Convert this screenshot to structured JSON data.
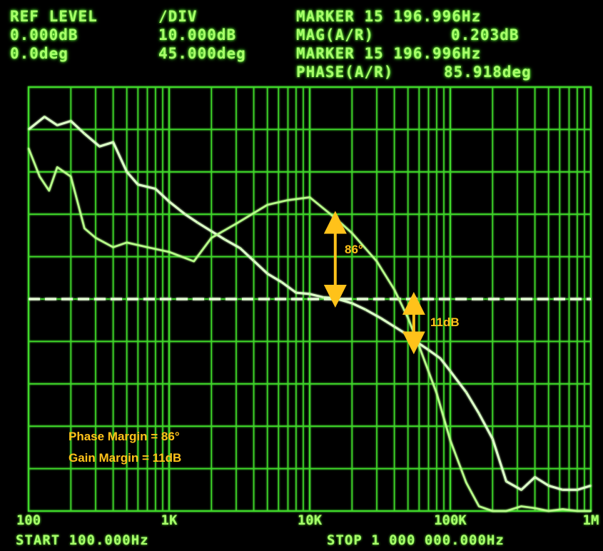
{
  "header": {
    "ref_level_label": "REF LEVEL",
    "ref_level_mag": "0.000dB",
    "ref_level_phase": "0.0deg",
    "div_label": "/DIV",
    "div_mag": "10.000dB",
    "div_phase": "45.000deg",
    "marker1": "MARKER 15 196.996Hz",
    "mag_label": "MAG(A/R)",
    "mag_value": "0.203dB",
    "marker2": "MARKER 15 196.996Hz",
    "phase_label": "PHASE(A/R)",
    "phase_value": "85.918deg"
  },
  "footer": {
    "start": "START 100.000Hz",
    "stop": "STOP 1 000 000.000Hz"
  },
  "annotations": {
    "phase_arrow_label": "86°",
    "gain_arrow_label": "11dB",
    "phase_margin": "Phase Margin = 86°",
    "gain_margin": "Gain Margin = 11dB"
  },
  "colors": {
    "trace": "#b8ff8a",
    "grid": "#3fd82a",
    "annotation": "#ffc21a"
  },
  "chart_data": {
    "type": "line",
    "x_scale": "log",
    "xlim": [
      100,
      1000000
    ],
    "x_tick_labels": [
      "100",
      "1K",
      "10K",
      "100K",
      "1M"
    ],
    "x_tick_values": [
      100,
      1000,
      10000,
      100000,
      1000000
    ],
    "y_divisions": 10,
    "mag_ylim": [
      -50,
      50
    ],
    "phase_ylim": [
      -225,
      225
    ],
    "grid": true,
    "series": [
      {
        "name": "MAG(A/R)",
        "unit": "dB",
        "x": [
          100,
          130,
          160,
          200,
          250,
          320,
          400,
          500,
          600,
          800,
          1000,
          1300,
          1600,
          2000,
          2500,
          3200,
          4000,
          5000,
          6300,
          8000,
          10000,
          12500,
          15197,
          20000,
          25000,
          32000,
          40000,
          50000,
          60000,
          70000,
          85000,
          100000,
          130000,
          160000,
          200000,
          250000,
          320000,
          400000,
          500000,
          630000,
          800000,
          1000000
        ],
        "y": [
          40,
          43,
          41,
          42,
          39,
          36,
          37,
          30,
          27,
          26,
          23,
          20,
          18,
          16,
          14,
          12,
          9,
          6,
          4,
          1.5,
          1.2,
          0.4,
          0.2,
          -1,
          -2.5,
          -4.5,
          -6.5,
          -8.5,
          -10.5,
          -12,
          -14,
          -17,
          -22,
          -27,
          -33,
          -43,
          -45,
          -42,
          -44,
          -45,
          -45,
          -44
        ]
      },
      {
        "name": "PHASE(A/R)",
        "unit": "deg",
        "x": [
          100,
          120,
          140,
          160,
          200,
          250,
          300,
          400,
          500,
          700,
          1000,
          1500,
          2000,
          3000,
          5000,
          7000,
          10000,
          15197,
          20000,
          30000,
          40000,
          50000,
          60000,
          80000,
          100000,
          130000,
          160000,
          200000,
          250000,
          320000,
          400000,
          500000,
          630000,
          800000,
          1000000
        ],
        "y": [
          160,
          130,
          115,
          140,
          130,
          75,
          65,
          55,
          60,
          55,
          50,
          40,
          65,
          80,
          100,
          105,
          108,
          86,
          70,
          40,
          10,
          -20,
          -50,
          -100,
          -150,
          -195,
          -220,
          -225,
          -225,
          -220,
          -222,
          -225,
          -223,
          -225,
          -225
        ]
      }
    ]
  }
}
